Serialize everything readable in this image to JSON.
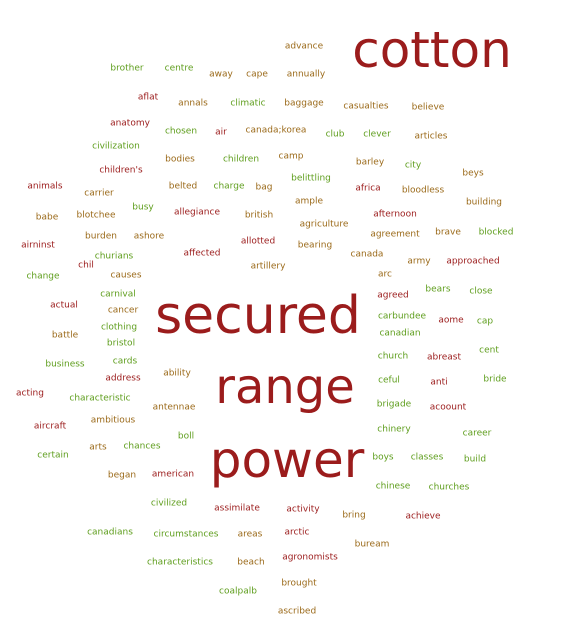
{
  "colors": {
    "red": "#9b1c1c",
    "green": "#5f9e1e",
    "brown": "#9b6a1a"
  },
  "words": [
    {
      "text": "cotton",
      "color": "red",
      "size": "xl"
    },
    {
      "text": "secured",
      "color": "red",
      "size": "xl"
    },
    {
      "text": "range",
      "color": "red",
      "size": "xl"
    },
    {
      "text": "power",
      "color": "red",
      "size": "xl"
    },
    {
      "text": "advance",
      "color": "brown"
    },
    {
      "text": "brother",
      "color": "green"
    },
    {
      "text": "centre",
      "color": "green"
    },
    {
      "text": "away",
      "color": "brown"
    },
    {
      "text": "cape",
      "color": "brown"
    },
    {
      "text": "annually",
      "color": "brown"
    },
    {
      "text": "aflat",
      "color": "red"
    },
    {
      "text": "annals",
      "color": "brown"
    },
    {
      "text": "climatic",
      "color": "green"
    },
    {
      "text": "baggage",
      "color": "brown"
    },
    {
      "text": "casualties",
      "color": "brown"
    },
    {
      "text": "believe",
      "color": "brown"
    },
    {
      "text": "anatomy",
      "color": "red"
    },
    {
      "text": "chosen",
      "color": "green"
    },
    {
      "text": "air",
      "color": "red"
    },
    {
      "text": "canada;korea",
      "color": "brown"
    },
    {
      "text": "club",
      "color": "green"
    },
    {
      "text": "clever",
      "color": "green"
    },
    {
      "text": "articles",
      "color": "brown"
    },
    {
      "text": "civilization",
      "color": "green"
    },
    {
      "text": "bodies",
      "color": "brown"
    },
    {
      "text": "children",
      "color": "green"
    },
    {
      "text": "camp",
      "color": "brown"
    },
    {
      "text": "barley",
      "color": "brown"
    },
    {
      "text": "city",
      "color": "green"
    },
    {
      "text": "children's",
      "color": "red"
    },
    {
      "text": "beys",
      "color": "brown"
    },
    {
      "text": "animals",
      "color": "red"
    },
    {
      "text": "carrier",
      "color": "brown"
    },
    {
      "text": "belted",
      "color": "brown"
    },
    {
      "text": "charge",
      "color": "green"
    },
    {
      "text": "bag",
      "color": "brown"
    },
    {
      "text": "belittling",
      "color": "green"
    },
    {
      "text": "africa",
      "color": "red"
    },
    {
      "text": "bloodless",
      "color": "brown"
    },
    {
      "text": "busy",
      "color": "green"
    },
    {
      "text": "ample",
      "color": "brown"
    },
    {
      "text": "building",
      "color": "brown"
    },
    {
      "text": "babe",
      "color": "brown"
    },
    {
      "text": "blotchee",
      "color": "brown"
    },
    {
      "text": "allegiance",
      "color": "red"
    },
    {
      "text": "british",
      "color": "brown"
    },
    {
      "text": "afternoon",
      "color": "red"
    },
    {
      "text": "agriculture",
      "color": "brown"
    },
    {
      "text": "airninst",
      "color": "red"
    },
    {
      "text": "burden",
      "color": "brown"
    },
    {
      "text": "ashore",
      "color": "brown"
    },
    {
      "text": "agreement",
      "color": "brown"
    },
    {
      "text": "brave",
      "color": "brown"
    },
    {
      "text": "blocked",
      "color": "green"
    },
    {
      "text": "allotted",
      "color": "red"
    },
    {
      "text": "bearing",
      "color": "brown"
    },
    {
      "text": "churians",
      "color": "green"
    },
    {
      "text": "affected",
      "color": "red"
    },
    {
      "text": "canada",
      "color": "brown"
    },
    {
      "text": "chil",
      "color": "red"
    },
    {
      "text": "artillery",
      "color": "brown"
    },
    {
      "text": "army",
      "color": "brown"
    },
    {
      "text": "approached",
      "color": "red"
    },
    {
      "text": "change",
      "color": "green"
    },
    {
      "text": "causes",
      "color": "brown"
    },
    {
      "text": "arc",
      "color": "brown"
    },
    {
      "text": "carnival",
      "color": "green"
    },
    {
      "text": "bears",
      "color": "green"
    },
    {
      "text": "close",
      "color": "green"
    },
    {
      "text": "agreed",
      "color": "red"
    },
    {
      "text": "actual",
      "color": "red"
    },
    {
      "text": "cancer",
      "color": "brown"
    },
    {
      "text": "carbundee",
      "color": "green"
    },
    {
      "text": "aome",
      "color": "red"
    },
    {
      "text": "cap",
      "color": "green"
    },
    {
      "text": "clothing",
      "color": "green"
    },
    {
      "text": "battle",
      "color": "brown"
    },
    {
      "text": "canadian",
      "color": "green"
    },
    {
      "text": "bristol",
      "color": "green"
    },
    {
      "text": "cent",
      "color": "green"
    },
    {
      "text": "church",
      "color": "green"
    },
    {
      "text": "abreast",
      "color": "red"
    },
    {
      "text": "business",
      "color": "green"
    },
    {
      "text": "cards",
      "color": "green"
    },
    {
      "text": "ability",
      "color": "brown"
    },
    {
      "text": "address",
      "color": "red"
    },
    {
      "text": "ceful",
      "color": "green"
    },
    {
      "text": "anti",
      "color": "red"
    },
    {
      "text": "bride",
      "color": "green"
    },
    {
      "text": "acting",
      "color": "red"
    },
    {
      "text": "characteristic",
      "color": "green"
    },
    {
      "text": "antennae",
      "color": "brown"
    },
    {
      "text": "brigade",
      "color": "green"
    },
    {
      "text": "acoount",
      "color": "red"
    },
    {
      "text": "ambitious",
      "color": "brown"
    },
    {
      "text": "aircraft",
      "color": "red"
    },
    {
      "text": "boll",
      "color": "green"
    },
    {
      "text": "chinery",
      "color": "green"
    },
    {
      "text": "career",
      "color": "green"
    },
    {
      "text": "arts",
      "color": "brown"
    },
    {
      "text": "chances",
      "color": "green"
    },
    {
      "text": "certain",
      "color": "green"
    },
    {
      "text": "boys",
      "color": "green"
    },
    {
      "text": "classes",
      "color": "green"
    },
    {
      "text": "build",
      "color": "green"
    },
    {
      "text": "began",
      "color": "brown"
    },
    {
      "text": "american",
      "color": "red"
    },
    {
      "text": "chinese",
      "color": "green"
    },
    {
      "text": "churches",
      "color": "green"
    },
    {
      "text": "civilized",
      "color": "green"
    },
    {
      "text": "assimilate",
      "color": "red"
    },
    {
      "text": "activity",
      "color": "red"
    },
    {
      "text": "bring",
      "color": "brown"
    },
    {
      "text": "achieve",
      "color": "red"
    },
    {
      "text": "canadians",
      "color": "green"
    },
    {
      "text": "circumstances",
      "color": "green"
    },
    {
      "text": "areas",
      "color": "brown"
    },
    {
      "text": "arctic",
      "color": "red"
    },
    {
      "text": "buream",
      "color": "brown"
    },
    {
      "text": "characteristics",
      "color": "green"
    },
    {
      "text": "beach",
      "color": "brown"
    },
    {
      "text": "agronomists",
      "color": "red"
    },
    {
      "text": "brought",
      "color": "brown"
    },
    {
      "text": "coalpalb",
      "color": "green"
    },
    {
      "text": "ascribed",
      "color": "brown"
    }
  ]
}
